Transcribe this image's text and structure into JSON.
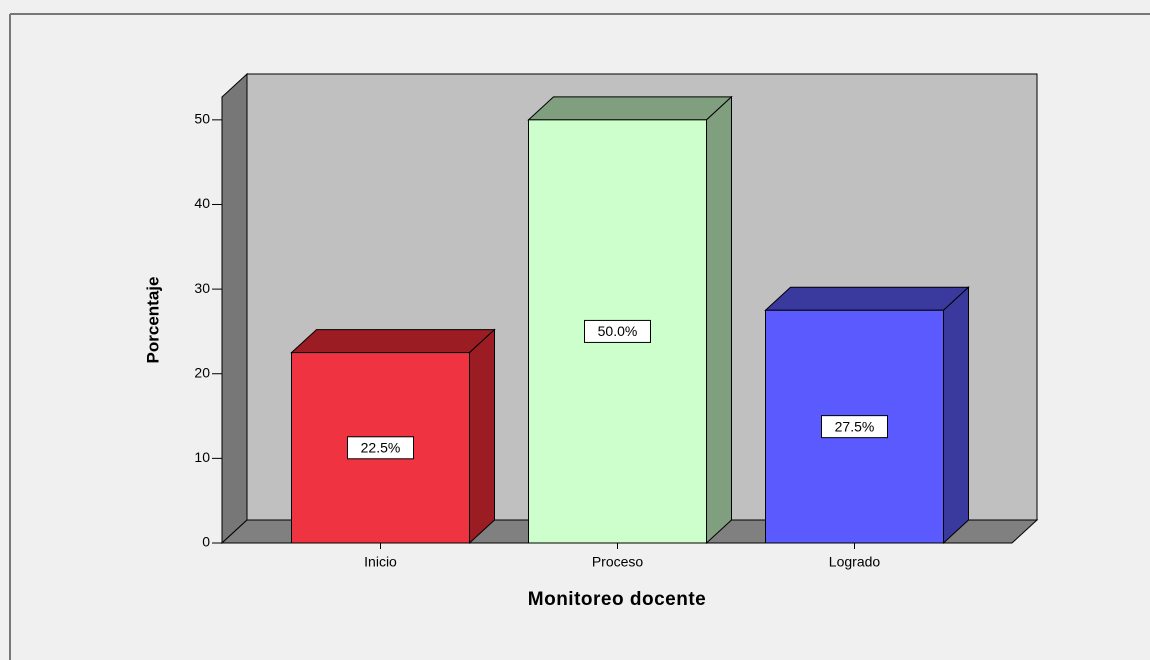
{
  "chart_data": {
    "type": "bar3d",
    "xlabel": "Monitoreo docente",
    "ylabel": "Porcentaje",
    "categories": [
      "Inicio",
      "Proceso",
      "Logrado"
    ],
    "values": [
      22.5,
      50.0,
      27.5
    ],
    "value_labels": [
      "22.5%",
      "50.0%",
      "27.5%"
    ],
    "colors": [
      "#ef3340",
      "#ccffcc",
      "#5a5aff"
    ],
    "side_colors": [
      "#9b1c22",
      "#7f9f7f",
      "#3a3a9e"
    ],
    "ylim": [
      0,
      52.7
    ],
    "yticks": [
      0,
      10,
      20,
      30,
      40,
      50
    ]
  }
}
